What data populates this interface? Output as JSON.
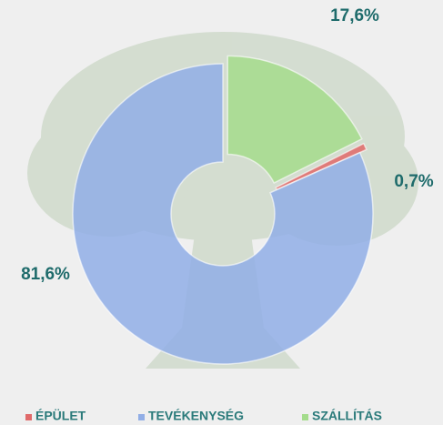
{
  "chart_data": {
    "type": "donut",
    "categories": [
      "ÉPÜLET",
      "TEVÉKENYSÉG",
      "SZÁLLÍTÁS"
    ],
    "values": [
      0.7,
      81.6,
      17.6
    ],
    "value_labels": [
      "0,7%",
      "81,6%",
      "17,6%"
    ],
    "colors": [
      "#e06a6a",
      "#91aee6",
      "#a4dc8c"
    ],
    "legend": "bottom"
  }
}
